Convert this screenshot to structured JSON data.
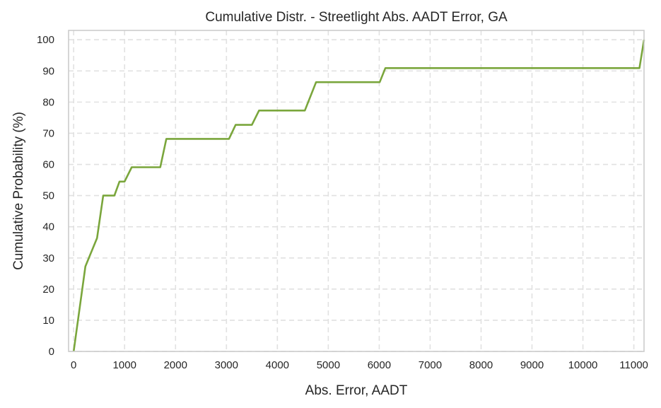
{
  "chart_data": {
    "type": "line",
    "title": "Cumulative Distr. - Streetlight Abs. AADT Error, GA",
    "xlabel": "Abs. Error, AADT",
    "ylabel": "Cumulative Probability (%)",
    "xlim": [
      -100,
      11200
    ],
    "ylim": [
      0,
      103
    ],
    "xticks": [
      0,
      1000,
      2000,
      3000,
      4000,
      5000,
      6000,
      7000,
      8000,
      9000,
      10000,
      11000
    ],
    "yticks": [
      0,
      10,
      20,
      30,
      40,
      50,
      60,
      70,
      80,
      90,
      100
    ],
    "grid": true,
    "grid_style": "dashed",
    "line_color": "#7aa63c",
    "series": [
      {
        "x": [
          0,
          230,
          460,
          580,
          800,
          900,
          1000,
          1140,
          1700,
          1820,
          3050,
          3180,
          3500,
          3640,
          4540,
          4760,
          6010,
          6120,
          11110,
          11200
        ],
        "y": [
          0,
          27.3,
          36.4,
          50.0,
          50.0,
          54.5,
          54.5,
          59.1,
          59.1,
          68.2,
          68.2,
          72.7,
          72.7,
          77.3,
          77.3,
          86.4,
          86.4,
          90.9,
          90.9,
          100
        ]
      }
    ]
  }
}
